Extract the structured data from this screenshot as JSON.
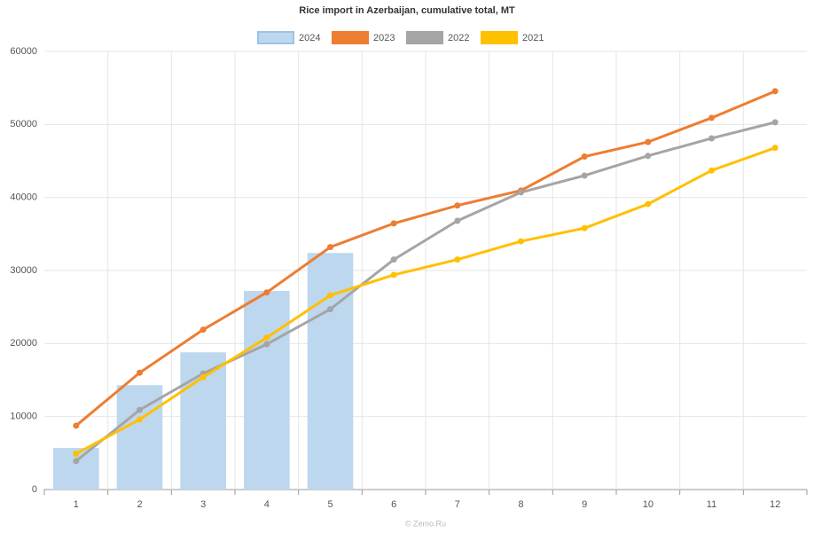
{
  "chart_data": {
    "type": "combo",
    "title": "Rice import in Azerbaijan, cumulative total, MT",
    "credit": "© Zemo.Ru",
    "categories": [
      "1",
      "2",
      "3",
      "4",
      "5",
      "6",
      "7",
      "8",
      "9",
      "10",
      "11",
      "12"
    ],
    "series": [
      {
        "name": "2024",
        "type": "bar",
        "color": "#bdd7ee",
        "values": [
          5700,
          14300,
          18800,
          27200,
          32400,
          null,
          null,
          null,
          null,
          null,
          null,
          null
        ]
      },
      {
        "name": "2023",
        "type": "line",
        "color": "#ed7d31",
        "values": [
          8750,
          16000,
          21900,
          27000,
          33200,
          36450,
          38900,
          40950,
          45600,
          47600,
          50900,
          54550
        ]
      },
      {
        "name": "2022",
        "type": "line",
        "color": "#a5a5a5",
        "values": [
          3900,
          10900,
          15900,
          19900,
          24700,
          31500,
          36800,
          40700,
          43000,
          45700,
          48100,
          50300
        ]
      },
      {
        "name": "2021",
        "type": "line",
        "color": "#ffc000",
        "values": [
          4900,
          9600,
          15400,
          20800,
          26600,
          29400,
          31500,
          34000,
          35800,
          39100,
          43700,
          46800
        ]
      }
    ],
    "ylim": [
      0,
      60000
    ],
    "yticks": [
      0,
      10000,
      20000,
      30000,
      40000,
      50000,
      60000
    ],
    "grid": true
  }
}
